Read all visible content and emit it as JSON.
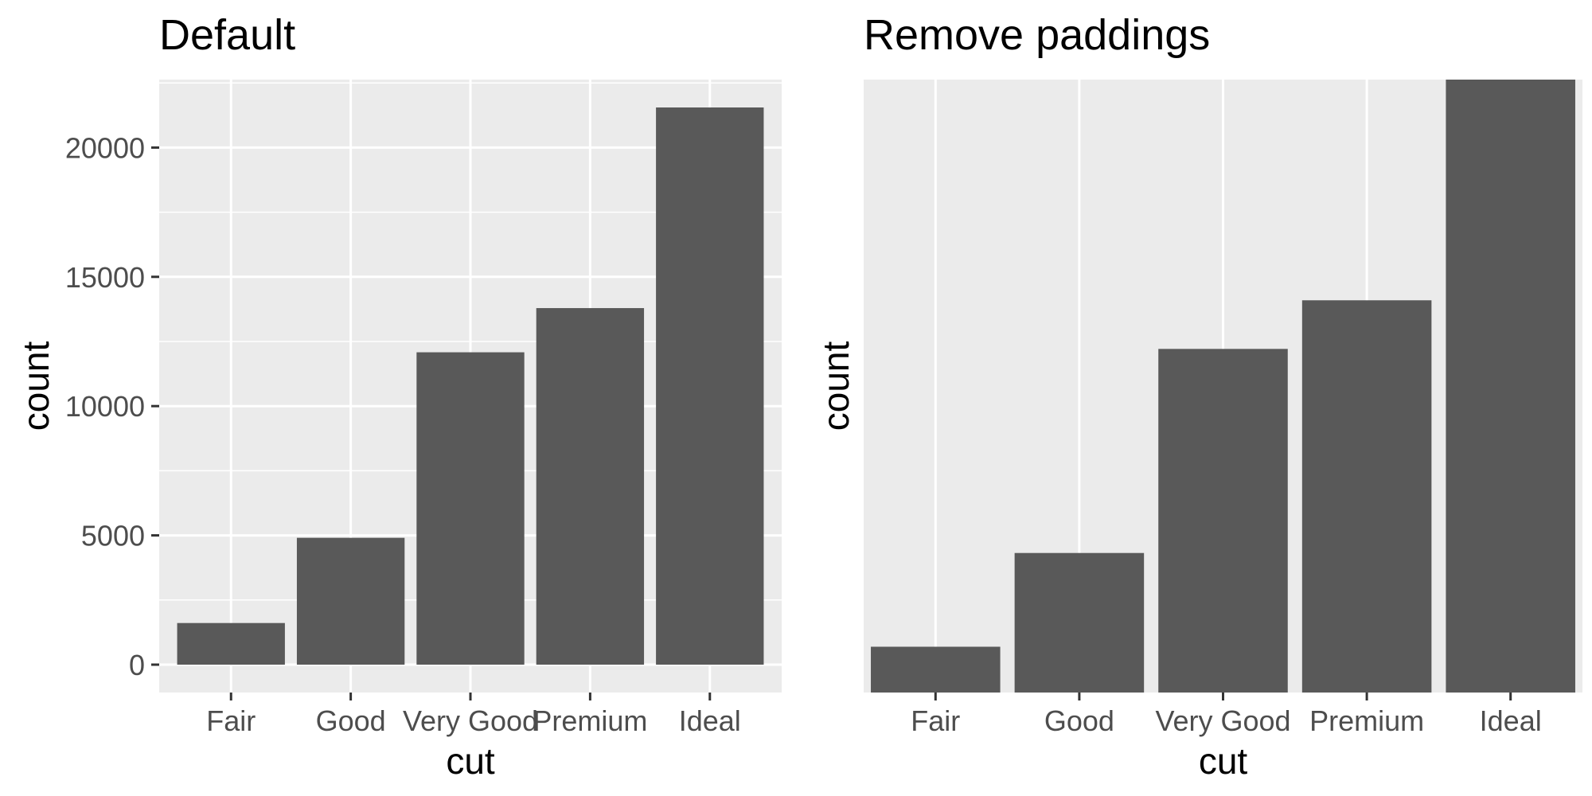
{
  "chart_data": [
    {
      "type": "bar",
      "title": "Default",
      "xlabel": "cut",
      "ylabel": "count",
      "categories": [
        "Fair",
        "Good",
        "Very Good",
        "Premium",
        "Ideal"
      ],
      "values": [
        1610,
        4906,
        12082,
        13791,
        21551
      ],
      "ylim": [
        -1078,
        22629
      ],
      "yticks": [
        0,
        5000,
        10000,
        15000,
        20000
      ],
      "ytick_labels": [
        "0",
        "5000",
        "10000",
        "15000",
        "20000"
      ],
      "y_axis_shown": true,
      "grid": true,
      "bar_color": "#595959",
      "panel_color": "#ebebeb",
      "grid_color": "#ffffff"
    },
    {
      "type": "bar",
      "title": "Remove paddings",
      "xlabel": "cut",
      "ylabel": "count",
      "categories": [
        "Fair",
        "Good",
        "Very Good",
        "Premium",
        "Ideal"
      ],
      "values": [
        1610,
        4906,
        12082,
        13791,
        21551
      ],
      "ylim": [
        0,
        21551
      ],
      "yticks": [],
      "ytick_labels": [],
      "y_axis_shown": false,
      "grid": true,
      "bar_color": "#595959",
      "panel_color": "#ebebeb",
      "grid_color": "#ffffff"
    }
  ]
}
